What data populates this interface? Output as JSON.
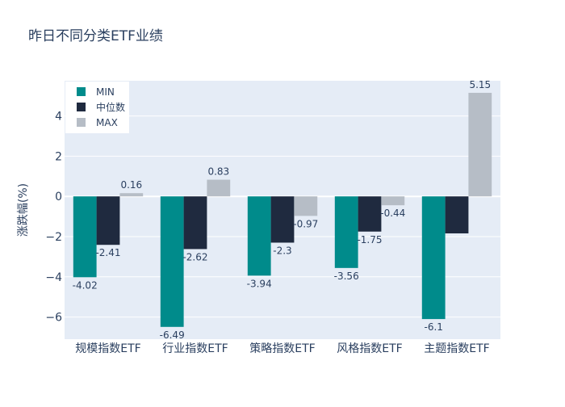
{
  "chart_data": {
    "type": "bar",
    "title": "昨日不同分类ETF业绩",
    "xlabel": "",
    "ylabel": "涨跌幅(%)",
    "categories": [
      "规模指数ETF",
      "行业指数ETF",
      "策略指数ETF",
      "风格指数ETF",
      "主题指数ETF"
    ],
    "series": [
      {
        "name": "MIN",
        "color": "#008B8B",
        "values": [
          -4.02,
          -6.49,
          -3.94,
          -3.56,
          -6.1
        ]
      },
      {
        "name": "中位数",
        "color": "#1F2A3F",
        "values": [
          -2.41,
          -2.62,
          -2.3,
          -1.75,
          -1.84
        ]
      },
      {
        "name": "MAX",
        "color": "#B6BDC6",
        "values": [
          0.16,
          0.83,
          -0.97,
          -0.44,
          5.15
        ]
      }
    ],
    "value_labels": [
      [
        "-4.02",
        "-2.41",
        "0.16"
      ],
      [
        "-6.49",
        "-2.62",
        "0.83"
      ],
      [
        "-3.94",
        "-2.3",
        "-0.97"
      ],
      [
        "-3.56",
        "-1.75",
        "-0.44"
      ],
      [
        "-6.1",
        "",
        "5.15"
      ]
    ],
    "ylim": [
      -7.1,
      5.75
    ],
    "yticks": [
      -6,
      -4,
      -2,
      0,
      2,
      4
    ],
    "ytick_labels": [
      "−6",
      "−4",
      "−2",
      "0",
      "2",
      "4"
    ],
    "grid": true,
    "legend_position": "top-left",
    "plot_bgcolor": "#E5ECF6"
  }
}
